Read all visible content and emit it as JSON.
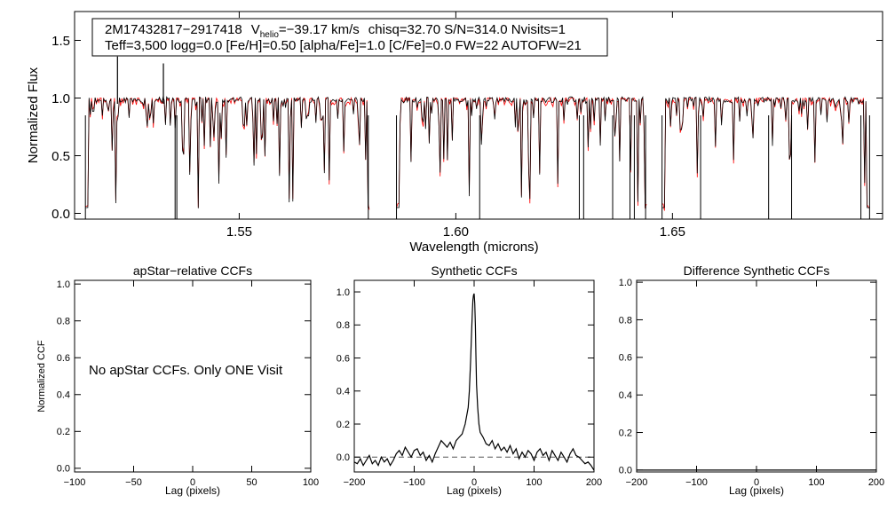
{
  "info_box": {
    "star_id": "2M17432817−2917418",
    "vhelio_symbol": "V",
    "vhelio_subscript": "helio",
    "vhelio_value": "=−39.17 km/s",
    "stats": "chisq=32.70  S/N=314.0  Nvisits=1",
    "params_line": "Teff=3,500 logg=0.0 [Fe/H]=0.50 [alpha/Fe]=1.0 [C/Fe]=0.0 FW=22 AUTOFW=21"
  },
  "chart_data": [
    {
      "type": "line",
      "name": "spectrum",
      "xlabel": "Wavelength (microns)",
      "ylabel": "Normalized Flux",
      "xlim": [
        1.512,
        1.6985
      ],
      "ylim": [
        -0.05,
        1.75
      ],
      "xticks": [
        1.55,
        1.6,
        1.65
      ],
      "xtick_labels": [
        "1.55",
        "1.60",
        "1.65"
      ],
      "yticks": [
        0.0,
        0.5,
        1.0,
        1.5
      ],
      "ytick_labels": [
        "0.0",
        "0.5",
        "1.0",
        "1.5"
      ],
      "chips": [
        [
          1.5145,
          1.5802
        ],
        [
          1.5863,
          1.6441
        ],
        [
          1.6476,
          1.6955
        ]
      ],
      "series": [
        {
          "name": "observed",
          "color": "#000000"
        },
        {
          "name": "model",
          "color": "#ff0000"
        }
      ],
      "spikes": [
        {
          "x": 1.5219,
          "y": 1.36
        },
        {
          "x": 1.5325,
          "y": 1.3
        }
      ],
      "deep_lines": [
        1.5145,
        1.5352,
        1.5356,
        1.5798,
        1.5863,
        1.6055,
        1.6285,
        1.6295,
        1.6362,
        1.6402,
        1.6412,
        1.6438,
        1.6476,
        1.6565,
        1.6722,
        1.6775,
        1.6935,
        1.6955
      ]
    },
    {
      "type": "line",
      "name": "apstar-ccf",
      "title": "apStar−relative CCFs",
      "xlabel": "Lag (pixels)",
      "ylabel": "Normalized CCF",
      "xlim": [
        -100,
        100
      ],
      "ylim": [
        -0.02,
        1.02
      ],
      "xticks": [
        -100,
        -50,
        0,
        50,
        100
      ],
      "xtick_labels": [
        "−100",
        "−50",
        "0",
        "50",
        "100"
      ],
      "yticks": [
        0.0,
        0.2,
        0.4,
        0.6,
        0.8,
        1.0
      ],
      "ytick_labels": [
        "0.0",
        "0.2",
        "0.4",
        "0.6",
        "0.8",
        "1.0"
      ],
      "annotation": "No apStar CCFs.  Only ONE Visit",
      "series": []
    },
    {
      "type": "line",
      "name": "synthetic-ccf",
      "title": "Synthetic CCFs",
      "xlabel": "Lag (pixels)",
      "ylabel": "",
      "xlim": [
        -200,
        200
      ],
      "ylim": [
        -0.09,
        1.07
      ],
      "xticks": [
        -200,
        -100,
        0,
        100,
        200
      ],
      "xtick_labels": [
        "−200",
        "−100",
        "0",
        "100",
        "200"
      ],
      "yticks": [
        0.0,
        0.2,
        0.4,
        0.6,
        0.8,
        1.0
      ],
      "ytick_labels": [
        "0.0",
        "0.2",
        "0.4",
        "0.6",
        "0.8",
        "1.0"
      ],
      "baseline": 0.0,
      "series": [
        {
          "name": "ccf",
          "x": [
            -200,
            -195,
            -190,
            -185,
            -180,
            -175,
            -170,
            -165,
            -160,
            -155,
            -150,
            -145,
            -140,
            -135,
            -130,
            -125,
            -120,
            -115,
            -110,
            -105,
            -100,
            -95,
            -90,
            -85,
            -80,
            -75,
            -70,
            -65,
            -60,
            -55,
            -50,
            -45,
            -40,
            -35,
            -30,
            -25,
            -20,
            -15,
            -10,
            -8,
            -6,
            -4,
            -3,
            -2,
            -1,
            0,
            1,
            2,
            3,
            4,
            6,
            8,
            10,
            15,
            20,
            25,
            30,
            35,
            40,
            45,
            50,
            55,
            60,
            65,
            70,
            75,
            80,
            85,
            90,
            95,
            100,
            105,
            110,
            115,
            120,
            125,
            130,
            135,
            140,
            145,
            150,
            155,
            160,
            165,
            170,
            175,
            180,
            185,
            190,
            195,
            200
          ],
          "y": [
            -0.03,
            -0.04,
            -0.01,
            -0.05,
            -0.02,
            0.01,
            -0.04,
            -0.02,
            -0.05,
            0.0,
            -0.03,
            -0.01,
            -0.05,
            -0.02,
            0.02,
            0.04,
            0.01,
            0.06,
            0.03,
            0.0,
            0.04,
            0.05,
            0.01,
            0.03,
            -0.02,
            0.01,
            -0.03,
            0.02,
            0.06,
            0.1,
            0.08,
            0.06,
            0.09,
            0.05,
            0.1,
            0.12,
            0.14,
            0.2,
            0.3,
            0.4,
            0.58,
            0.78,
            0.88,
            0.95,
            0.98,
            0.99,
            0.93,
            0.8,
            0.62,
            0.44,
            0.3,
            0.2,
            0.15,
            0.12,
            0.08,
            0.07,
            0.1,
            0.05,
            0.08,
            0.04,
            0.06,
            0.03,
            0.07,
            0.02,
            0.05,
            -0.01,
            0.03,
            0.0,
            0.04,
            0.02,
            -0.02,
            0.03,
            0.05,
            0.01,
            0.03,
            -0.02,
            0.04,
            0.01,
            -0.02,
            0.03,
            0.0,
            -0.03,
            0.02,
            0.05,
            0.01,
            0.0,
            -0.02,
            -0.04,
            -0.03,
            -0.05,
            -0.08
          ]
        }
      ]
    },
    {
      "type": "line",
      "name": "difference-ccf",
      "title": "Difference Synthetic CCFs",
      "xlabel": "Lag (pixels)",
      "ylabel": "",
      "xlim": [
        -200,
        200
      ],
      "ylim": [
        -0.01,
        1.01
      ],
      "xticks": [
        -200,
        -100,
        0,
        100,
        200
      ],
      "xtick_labels": [
        "−200",
        "−100",
        "0",
        "100",
        "200"
      ],
      "yticks": [
        0.0,
        0.2,
        0.4,
        0.6,
        0.8,
        1.0
      ],
      "ytick_labels": [
        "0.0",
        "0.2",
        "0.4",
        "0.6",
        "0.8",
        "1.0"
      ],
      "series": [
        {
          "name": "difference",
          "x": [
            -200,
            200
          ],
          "y": [
            0.0,
            0.0
          ]
        }
      ]
    }
  ]
}
